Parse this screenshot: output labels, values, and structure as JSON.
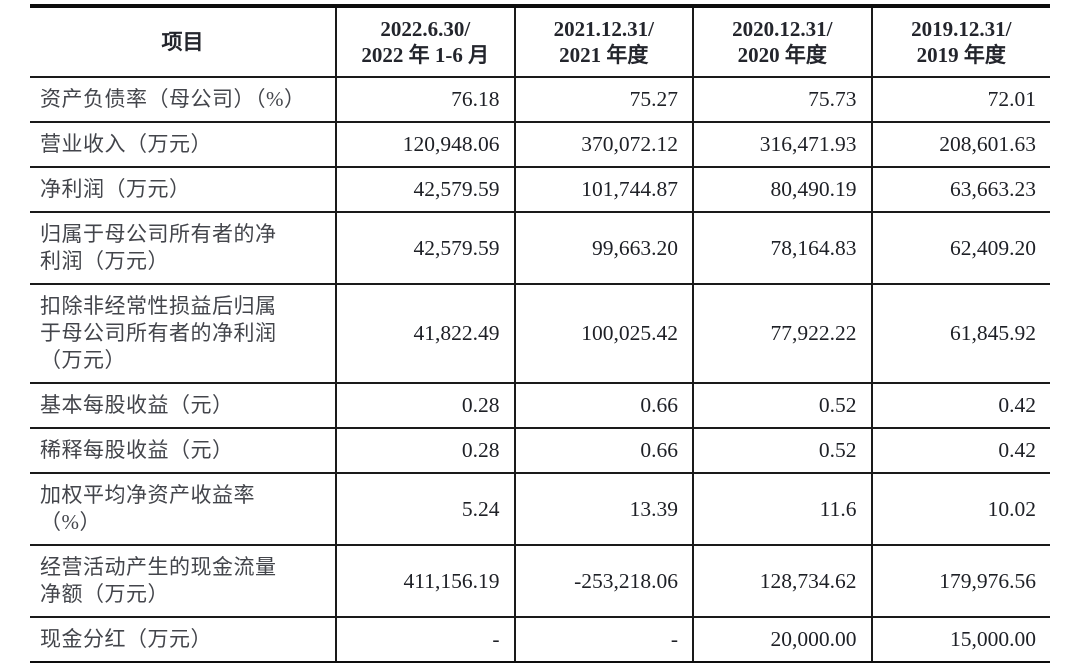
{
  "table": {
    "header": {
      "item_label": "项目",
      "periods": [
        "2022.6.30/\n2022 年 1-6 月",
        "2021.12.31/\n2021 年度",
        "2020.12.31/\n2020 年度",
        "2019.12.31/\n2019 年度"
      ]
    },
    "rows": [
      {
        "label": "资产负债率（母公司）（%）",
        "values": [
          "76.18",
          "75.27",
          "75.73",
          "72.01"
        ]
      },
      {
        "label": "营业收入（万元）",
        "values": [
          "120,948.06",
          "370,072.12",
          "316,471.93",
          "208,601.63"
        ]
      },
      {
        "label": "净利润（万元）",
        "values": [
          "42,579.59",
          "101,744.87",
          "80,490.19",
          "63,663.23"
        ]
      },
      {
        "label": "归属于母公司所有者的净\n利润（万元）",
        "values": [
          "42,579.59",
          "99,663.20",
          "78,164.83",
          "62,409.20"
        ]
      },
      {
        "label": "扣除非经常性损益后归属\n于母公司所有者的净利润\n（万元）",
        "values": [
          "41,822.49",
          "100,025.42",
          "77,922.22",
          "61,845.92"
        ]
      },
      {
        "label": "基本每股收益（元）",
        "values": [
          "0.28",
          "0.66",
          "0.52",
          "0.42"
        ]
      },
      {
        "label": "稀释每股收益（元）",
        "values": [
          "0.28",
          "0.66",
          "0.52",
          "0.42"
        ]
      },
      {
        "label": "加权平均净资产收益率\n（%）",
        "values": [
          "5.24",
          "13.39",
          "11.6",
          "10.02"
        ]
      },
      {
        "label": "经营活动产生的现金流量\n净额（万元）",
        "values": [
          "411,156.19",
          "-253,218.06",
          "128,734.62",
          "179,976.56"
        ]
      },
      {
        "label": "现金分红（万元）",
        "values": [
          "-",
          "-",
          "20,000.00",
          "15,000.00"
        ]
      }
    ]
  }
}
